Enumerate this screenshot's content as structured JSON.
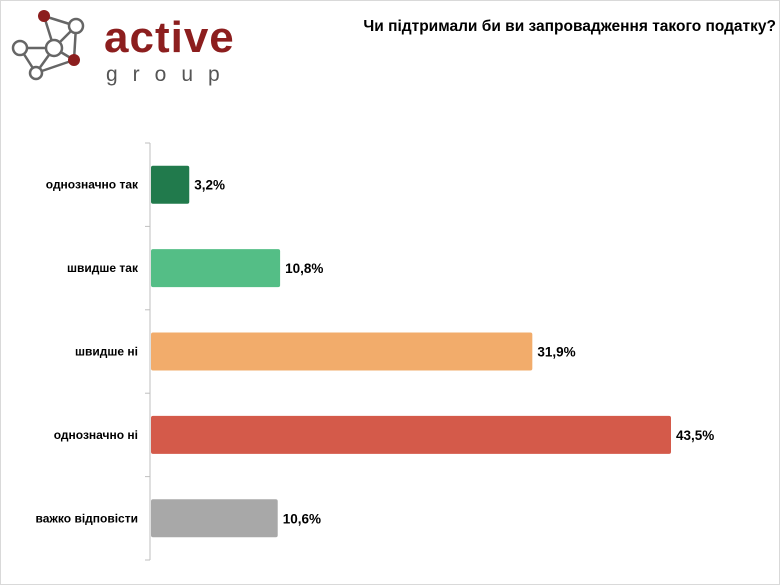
{
  "brand": {
    "name": "active",
    "sub": "group",
    "colors": {
      "name": "#8c1e1e",
      "network": "#666666",
      "node_accent": "#8c1e1e"
    }
  },
  "chart_data": {
    "type": "bar",
    "orientation": "horizontal",
    "title": "Чи підтримали би ви запровадження такого податку?",
    "categories": [
      "однозначно так",
      "швидше так",
      "швидше ні",
      "однозначно ні",
      "важко відповісти"
    ],
    "values": [
      3.2,
      10.8,
      31.9,
      43.5,
      10.6
    ],
    "value_labels": [
      "3,2%",
      "10,8%",
      "31,9%",
      "43,5%",
      "10,6%"
    ],
    "colors": [
      "#217a4c",
      "#54be86",
      "#f2ac6b",
      "#d45a4a",
      "#a8a8a8"
    ],
    "unit": "%",
    "xlim": [
      0,
      45
    ],
    "grid": false,
    "legend": "none"
  }
}
